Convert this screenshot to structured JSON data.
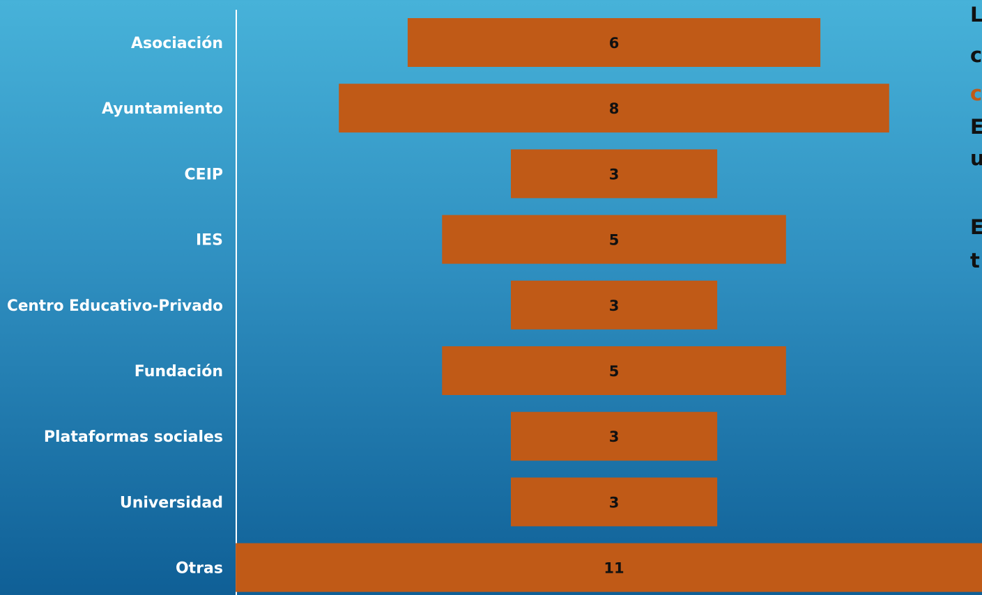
{
  "chart_data": {
    "type": "bar",
    "orientation": "horizontal",
    "alignment": "centered",
    "categories": [
      "Asociación",
      "Ayuntamiento",
      "CEIP",
      "IES",
      "Centro Educativo-Privado",
      "Fundación",
      "Plataformas sociales",
      "Universidad",
      "Otras"
    ],
    "values": [
      6,
      8,
      3,
      5,
      3,
      5,
      3,
      3,
      11
    ],
    "title": "",
    "xlabel": "",
    "ylabel": "",
    "grid": false,
    "data_labels": true
  },
  "colors": {
    "bar": "#c05a17",
    "axis_line": "#ffffff",
    "category_text": "#ffffff",
    "value_text": "#111111",
    "background_top": "#47b2d9",
    "background_bottom": "#0f5f96",
    "accent_text": "#c05a17"
  },
  "side_text": [
    {
      "text": "L",
      "accent": false
    },
    {
      "text": "c",
      "accent": false
    },
    {
      "text": "c",
      "accent": true
    },
    {
      "text": "E",
      "accent": false
    },
    {
      "text": "u",
      "accent": false
    },
    {
      "text": "E",
      "accent": false
    },
    {
      "text": "t",
      "accent": false
    }
  ]
}
